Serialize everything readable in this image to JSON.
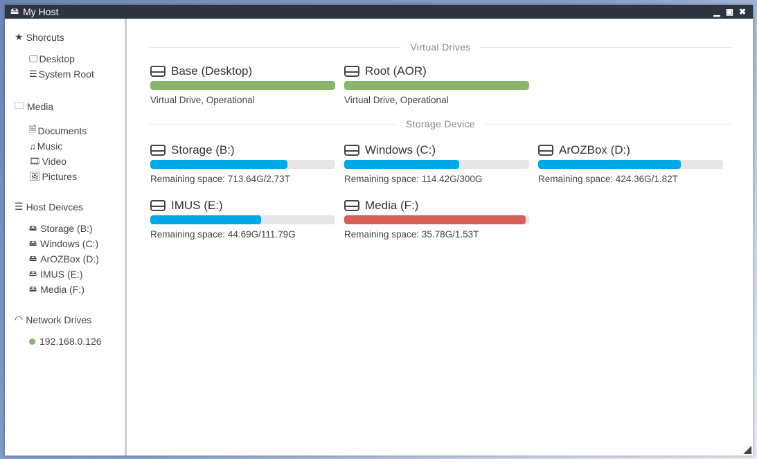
{
  "window": {
    "title": "My Host",
    "controls": [
      "minimize",
      "maximize",
      "close"
    ]
  },
  "sidebar": {
    "shortcuts": {
      "label": "Shorcuts",
      "items": [
        {
          "label": "Desktop",
          "icon": "desktop-icon"
        },
        {
          "label": "System Root",
          "icon": "server-icon"
        }
      ]
    },
    "media": {
      "label": "Media",
      "items": [
        {
          "label": "Documents",
          "icon": "file-icon"
        },
        {
          "label": "Music",
          "icon": "music-icon"
        },
        {
          "label": "Video",
          "icon": "film-icon"
        },
        {
          "label": "Pictures",
          "icon": "image-icon"
        }
      ]
    },
    "host": {
      "label": "Host Deivces",
      "items": [
        {
          "label": "Storage (B:)"
        },
        {
          "label": "Windows (C:)"
        },
        {
          "label": "ArOZBox (D:)"
        },
        {
          "label": "IMUS (E:)"
        },
        {
          "label": "Media (F:)"
        }
      ]
    },
    "network": {
      "label": "Network Drives",
      "items": [
        {
          "label": "192.168.0.126",
          "status_color": "#86b66a"
        }
      ]
    }
  },
  "main": {
    "virtual_title": "Virtual Drives",
    "virtual": [
      {
        "name": "Base (Desktop)",
        "status": "Virtual Drive, Operational",
        "fill_percent": 100,
        "color": "#8ab56d"
      },
      {
        "name": "Root (AOR)",
        "status": "Virtual Drive, Operational",
        "fill_percent": 100,
        "color": "#8ab56d"
      }
    ],
    "storage_title": "Storage Device",
    "storage": [
      {
        "name": "Storage (B:)",
        "status": "Remaining space: 713.64G/2.73T",
        "fill_percent": 74,
        "color": "#00a8e6"
      },
      {
        "name": "Windows (C:)",
        "status": "Remaining space: 114.42G/300G",
        "fill_percent": 62,
        "color": "#00a8e6"
      },
      {
        "name": "ArOZBox (D:)",
        "status": "Remaining space: 424.36G/1.82T",
        "fill_percent": 77,
        "color": "#00a8e6"
      },
      {
        "name": "IMUS (E:)",
        "status": "Remaining space: 44.69G/111.79G",
        "fill_percent": 60,
        "color": "#00a8e6"
      },
      {
        "name": "Media (F:)",
        "status": "Remaining space: 35.78G/1.53T",
        "fill_percent": 98,
        "color": "#d65f5a"
      }
    ]
  }
}
